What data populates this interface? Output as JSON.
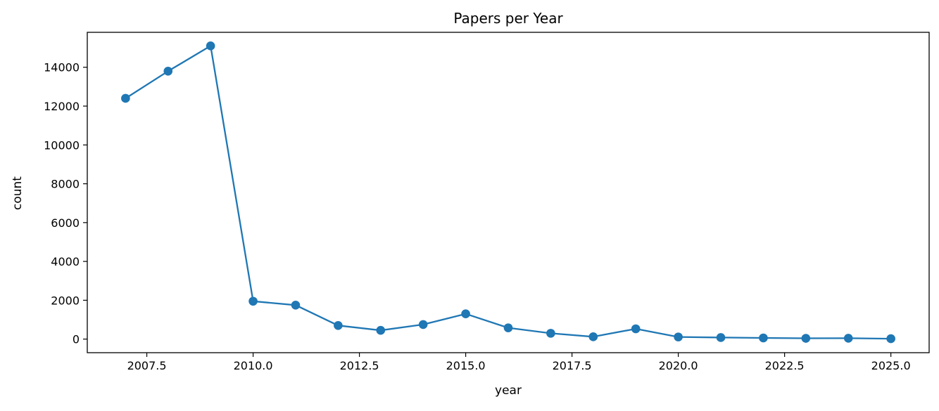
{
  "chart_data": {
    "type": "line",
    "title": "Papers per Year",
    "xlabel": "year",
    "ylabel": "count",
    "x": [
      2007,
      2008,
      2009,
      2010,
      2011,
      2012,
      2013,
      2014,
      2015,
      2016,
      2017,
      2018,
      2019,
      2020,
      2021,
      2022,
      2023,
      2024,
      2025
    ],
    "series": [
      {
        "values": [
          12400,
          13800,
          15100,
          1950,
          1750,
          700,
          450,
          750,
          1300,
          580,
          300,
          120,
          530,
          110,
          80,
          60,
          40,
          45,
          20
        ],
        "color": "#1f77b4",
        "marker": "circle"
      }
    ],
    "xlim": [
      2006.1,
      2025.9
    ],
    "ylim": [
      -700,
      15800
    ],
    "xticks": [
      "2007.5",
      "2010.0",
      "2012.5",
      "2015.0",
      "2017.5",
      "2020.0",
      "2022.5",
      "2025.0"
    ],
    "yticks": [
      "0",
      "2000",
      "4000",
      "6000",
      "8000",
      "10000",
      "12000",
      "14000"
    ],
    "grid": false,
    "legend": "none"
  }
}
